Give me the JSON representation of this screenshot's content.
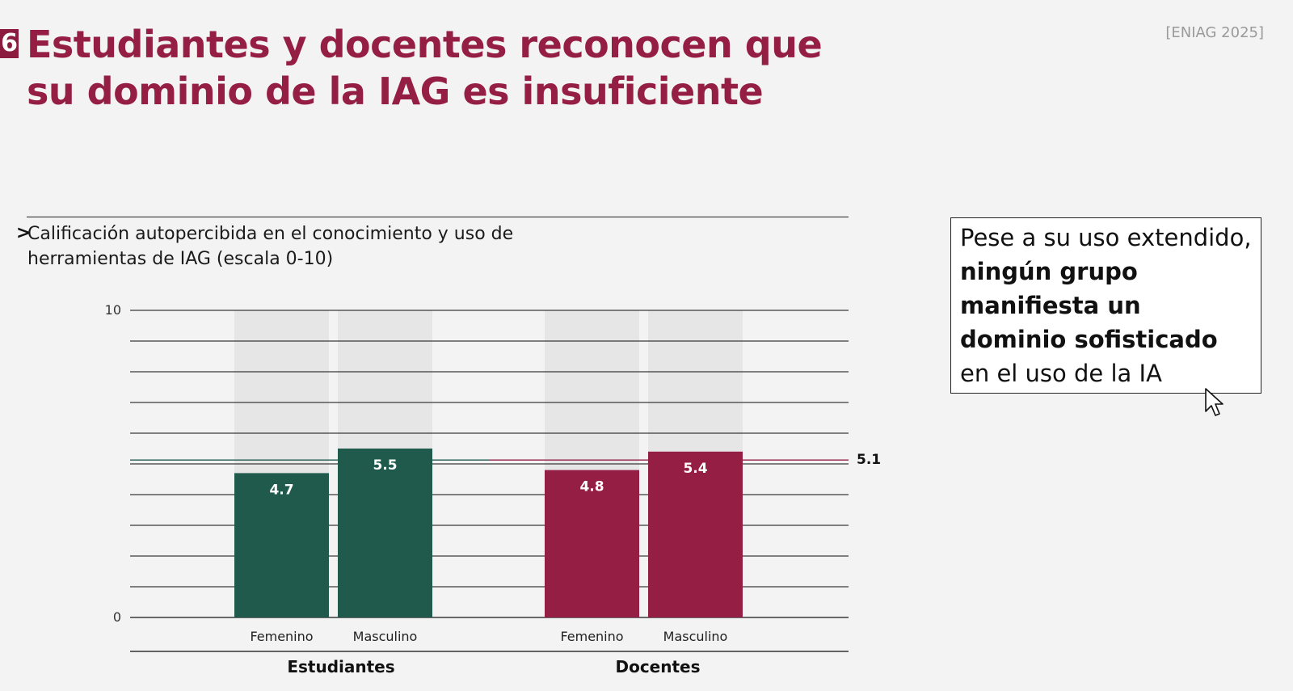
{
  "header": {
    "slide_number": "6",
    "title": "Estudiantes y docentes reconocen que su dominio de la IAG es insuficiente",
    "source": "[ENIAG 2025]"
  },
  "chart_data": {
    "type": "bar",
    "subtitle_marker": ">",
    "title": "Calificación autopercibida en el conocimiento y uso de herramientas de IAG (escala 0-10)",
    "ylim": [
      0,
      10
    ],
    "y_ticks": [
      "0",
      "10"
    ],
    "gridlines": 10,
    "background_bar_max": 10,
    "groups": [
      {
        "name": "Estudiantes",
        "color": "#1f5a4d",
        "bars": [
          {
            "label": "Femenino",
            "value": 4.7,
            "value_label": "4.7"
          },
          {
            "label": "Masculino",
            "value": 5.5,
            "value_label": "5.5"
          }
        ]
      },
      {
        "name": "Docentes",
        "color": "#951e45",
        "bars": [
          {
            "label": "Femenino",
            "value": 4.8,
            "value_label": "4.8"
          },
          {
            "label": "Masculino",
            "value": 5.4,
            "value_label": "5.4"
          }
        ]
      }
    ],
    "reference_line": {
      "value": 5.1,
      "label": "5.1",
      "colors": [
        "#1f5a4d",
        "#951e45"
      ]
    }
  },
  "callout": {
    "text_before": "Pese a su uso extendido, ",
    "text_bold": "ningún grupo manifiesta un dominio sofisticado",
    "text_after": " en el uso de la IA"
  },
  "colors": {
    "accent": "#951e45",
    "green": "#1f5a4d",
    "bar_bg": "#e6e6e6"
  }
}
